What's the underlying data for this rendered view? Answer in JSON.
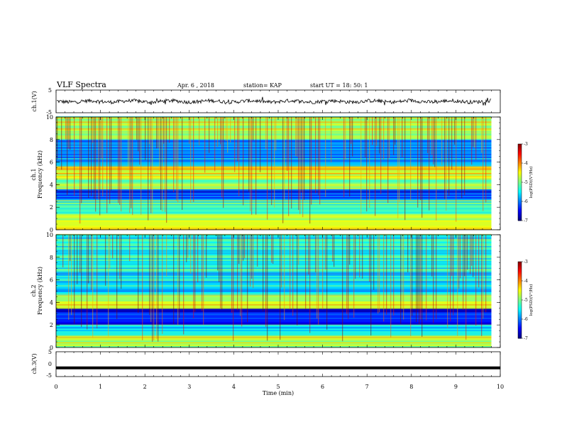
{
  "header": {
    "title": "VLF Spectra",
    "date": "Apr. 6 , 2018",
    "station": "station= KAP",
    "start": "start UT = 18: 50: 1"
  },
  "chart_data": [
    {
      "type": "line",
      "panel": "ch1-waveform",
      "ylabel": "ch.1(V)",
      "ylim": [
        -5,
        5
      ],
      "yticks": [
        "5",
        "-5"
      ],
      "xlim": [
        0,
        10
      ],
      "style": "noisy black trace around 0 V, amplitude ~±1 V"
    },
    {
      "type": "heatmap",
      "panel": "ch1-spectrogram",
      "ylabel": "ch.1\nFrequency (kHz)",
      "ylim": [
        0,
        10
      ],
      "yticks": [
        "0",
        "2",
        "4",
        "6",
        "8",
        "10"
      ],
      "xlim": [
        0,
        10
      ],
      "x_extent_min": 9.8,
      "colorbar": {
        "label": "log(PSD)(V²/Hz)",
        "ticks": [
          "-3",
          "-4",
          "-5",
          "-6",
          "-7"
        ],
        "range": [
          -7,
          -3
        ]
      },
      "bands_khz": [
        {
          "from": 0.0,
          "to": 1.4,
          "level": -4.6
        },
        {
          "from": 1.4,
          "to": 2.6,
          "level": -5.2
        },
        {
          "from": 2.6,
          "to": 3.6,
          "level": -6.2
        },
        {
          "from": 3.6,
          "to": 4.6,
          "level": -5.0
        },
        {
          "from": 4.6,
          "to": 5.6,
          "level": -4.6
        },
        {
          "from": 5.6,
          "to": 8.0,
          "level": -5.9
        },
        {
          "from": 8.0,
          "to": 10.0,
          "level": -4.8
        }
      ]
    },
    {
      "type": "heatmap",
      "panel": "ch2-spectrogram",
      "ylabel": "ch.2\nFrequency (kHz)",
      "ylim": [
        0,
        10
      ],
      "yticks": [
        "0",
        "2",
        "4",
        "6",
        "8",
        "10"
      ],
      "xlim": [
        0,
        10
      ],
      "x_extent_min": 9.8,
      "colorbar": {
        "label": "log(PSD)(V²/Hz)",
        "ticks": [
          "-3",
          "-4",
          "-5",
          "-6",
          "-7"
        ],
        "range": [
          -7,
          -3
        ]
      },
      "bands_khz": [
        {
          "from": 0.0,
          "to": 1.0,
          "level": -4.8
        },
        {
          "from": 1.0,
          "to": 2.0,
          "level": -5.6
        },
        {
          "from": 2.0,
          "to": 3.4,
          "level": -6.5
        },
        {
          "from": 3.4,
          "to": 4.6,
          "level": -4.7
        },
        {
          "from": 4.6,
          "to": 6.5,
          "level": -5.6
        },
        {
          "from": 6.5,
          "to": 10.0,
          "level": -5.4
        }
      ]
    },
    {
      "type": "line",
      "panel": "ch3-waveform",
      "ylabel": "ch.3(V)",
      "ylim": [
        -5,
        5
      ],
      "yticks": [
        "5",
        "0",
        "-5"
      ],
      "xlim": [
        0,
        10
      ],
      "xlabel": "Time (min)",
      "xticks": [
        "0",
        "1",
        "2",
        "3",
        "4",
        "5",
        "6",
        "7",
        "8",
        "9",
        "10"
      ],
      "style": "flat thick black line near -1.5 V"
    }
  ]
}
